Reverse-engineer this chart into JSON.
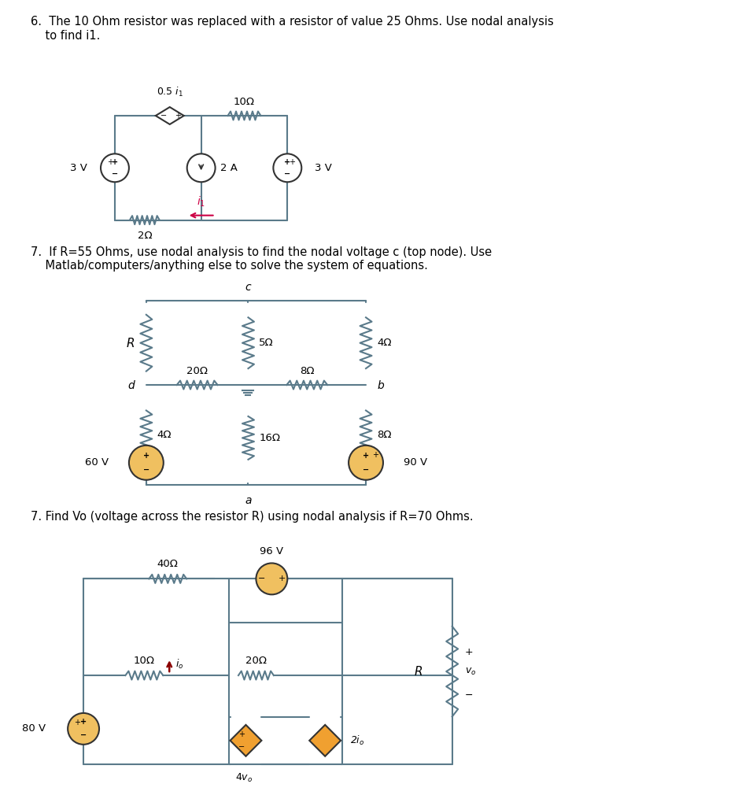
{
  "bg_color": "#ffffff",
  "text_color": "#000000",
  "wire_color": "#5a7a8a",
  "resistor_color": "#5a7a8a",
  "source_fill_yellow": "#f0c060",
  "source_fill_white": "#ffffff",
  "arrow_color": "#cc0044",
  "dependent_fill": "#f0a030",
  "section6_title": "6.  The 10 Ohm resistor was replaced with a resistor of value 25 Ohms. Use nodal analysis\n    to find i1.",
  "section7a_title": "7.  If R=55 Ohms, use nodal analysis to find the nodal voltage c (top node). Use\n    Matlab/computers/anything else to solve the system of equations.",
  "section7b_title": "7. Find Vo (voltage across the resistor R) using nodal analysis if R=70 Ohms."
}
